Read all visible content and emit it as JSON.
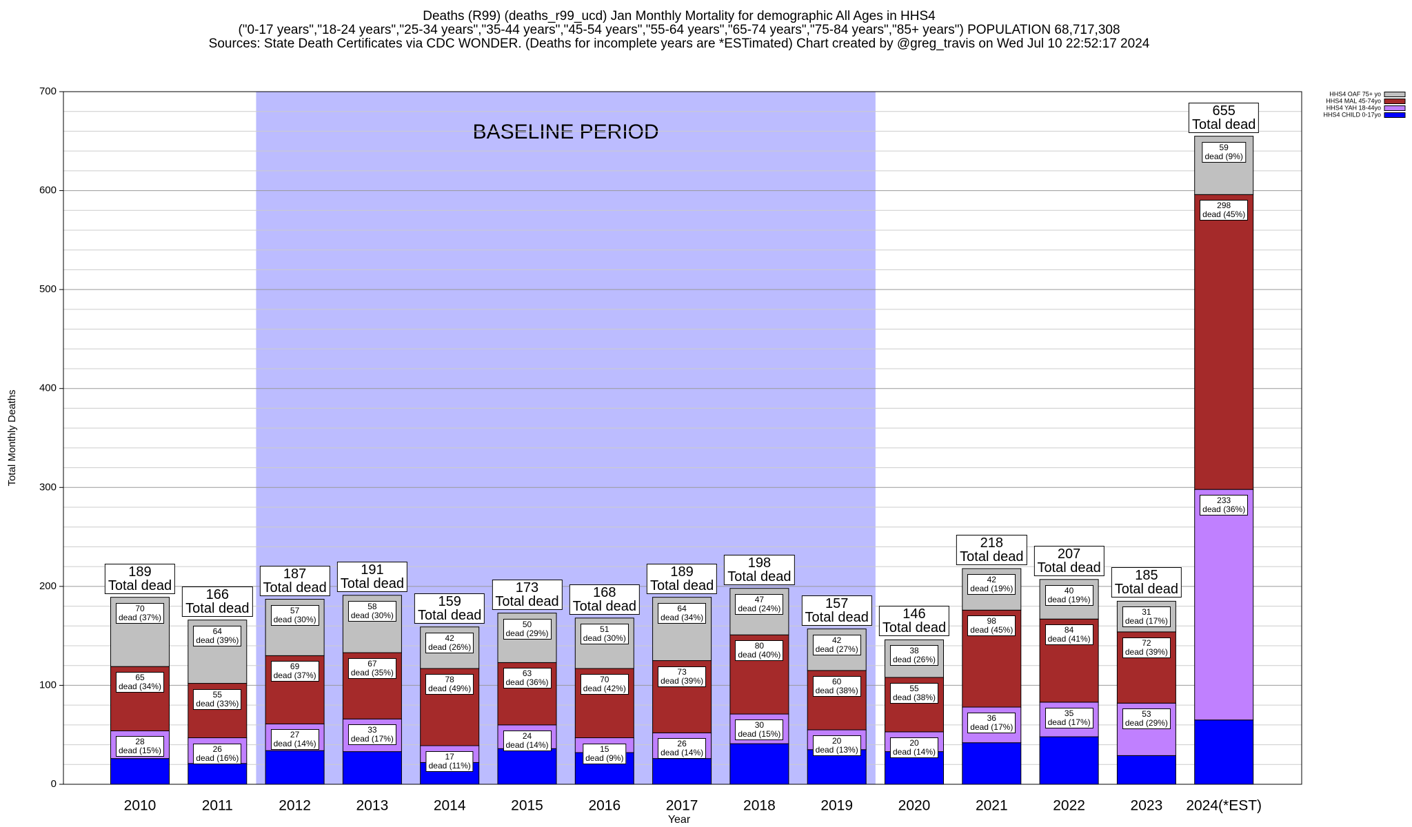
{
  "chart_data": {
    "type": "stacked_bar",
    "title_lines": [
      "Deaths (R99) (deaths_r99_ucd) Jan Monthly Mortality for demographic All Ages in HHS4",
      "(\"0-17 years\",\"18-24 years\",\"25-34 years\",\"35-44 years\",\"45-54 years\",\"55-64 years\",\"65-74 years\",\"75-84 years\",\"85+ years\") POPULATION 68,717,308",
      "Sources: State Death Certificates via CDC WONDER. (Deaths for incomplete years are *ESTimated)                Chart created by @greg_travis on Wed Jul 10 22:52:17 2024"
    ],
    "x_label": "Year",
    "y_label": "Total Monthly Deaths",
    "categories": [
      "2010",
      "2011",
      "2012",
      "2013",
      "2014",
      "2015",
      "2016",
      "2017",
      "2018",
      "2019",
      "2020",
      "2021",
      "2022",
      "2023",
      "2024(*EST)"
    ],
    "series": [
      {
        "name": "HHS4 CHILD 0-17yo",
        "color": "#0000ff",
        "values": [
          26,
          21,
          34,
          33,
          22,
          36,
          32,
          26,
          41,
          35,
          33,
          42,
          48,
          29,
          65
        ]
      },
      {
        "name": "HHS4 YAH 18-44yo",
        "color": "#c080ff",
        "values": [
          28,
          26,
          27,
          33,
          17,
          24,
          15,
          26,
          30,
          20,
          20,
          36,
          35,
          53,
          233
        ],
        "value_labels": [
          "28\ndead (15%)",
          "26\ndead (16%)",
          "27\ndead (14%)",
          "33\ndead (17%)",
          "17\ndead (11%)",
          "24\ndead (14%)",
          "15\ndead (9%)",
          "26\ndead (14%)",
          "30\ndead (15%)",
          "20\ndead (13%)",
          "20\ndead (14%)",
          "36\ndead (17%)",
          "35\ndead (17%)",
          "53\ndead (29%)",
          "233\ndead (36%)"
        ]
      },
      {
        "name": "HHS4 MAL 45-74yo",
        "color": "#a52a2a",
        "values": [
          65,
          55,
          69,
          67,
          78,
          63,
          70,
          73,
          80,
          60,
          55,
          98,
          84,
          72,
          298
        ],
        "value_labels": [
          "65\ndead (34%)",
          "55\ndead (33%)",
          "69\ndead (37%)",
          "67\ndead (35%)",
          "78\ndead (49%)",
          "63\ndead (36%)",
          "70\ndead (42%)",
          "73\ndead (39%)",
          "80\ndead (40%)",
          "60\ndead (38%)",
          "55\ndead (38%)",
          "98\ndead (45%)",
          "84\ndead (41%)",
          "72\ndead (39%)",
          "298\ndead (45%)"
        ]
      },
      {
        "name": "HHS4 OAF 75+ yo",
        "color": "#c0c0c0",
        "values": [
          70,
          64,
          57,
          58,
          42,
          50,
          51,
          64,
          47,
          42,
          38,
          42,
          40,
          31,
          59
        ],
        "value_labels": [
          "70\ndead (37%)",
          "64\ndead (39%)",
          "57\ndead (30%)",
          "58\ndead (30%)",
          "42\ndead (26%)",
          "50\ndead (29%)",
          "51\ndead (30%)",
          "64\ndead (34%)",
          "47\ndead (24%)",
          "42\ndead (27%)",
          "38\ndead (26%)",
          "42\ndead (19%)",
          "40\ndead (19%)",
          "31\ndead (17%)",
          "59\ndead (9%)"
        ]
      }
    ],
    "totals": [
      189,
      166,
      187,
      191,
      159,
      173,
      168,
      189,
      198,
      157,
      146,
      218,
      207,
      185,
      655
    ],
    "total_label": "Total dead",
    "baseline": {
      "label": "BASELINE PERIOD",
      "from": "2012",
      "to": "2019",
      "color": "#bcbcff"
    },
    "ylim": [
      0,
      700
    ],
    "yticks": [
      0,
      100,
      200,
      300,
      400,
      500,
      600,
      700
    ],
    "grid": true,
    "legend": "top-right"
  }
}
